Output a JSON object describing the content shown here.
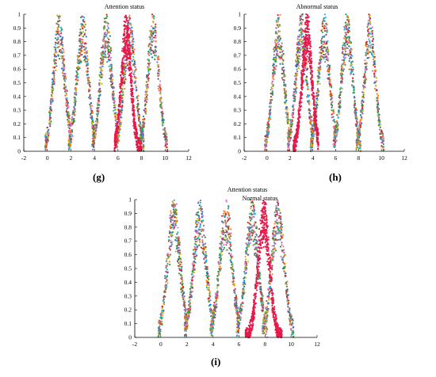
{
  "figure": {
    "panels": [
      {
        "label": "(g)"
      },
      {
        "label": "(h)"
      },
      {
        "label": "(i)"
      }
    ]
  },
  "chart_data": [
    {
      "type": "scatter",
      "panel": "(g)",
      "title": "",
      "annotations": [
        "Attention status"
      ],
      "xlabel": "",
      "ylabel": "",
      "xlim": [
        -2,
        12
      ],
      "ylim": [
        0,
        1
      ],
      "xticks": [
        "-2",
        "0",
        "2",
        "4",
        "6",
        "8",
        "10",
        "12"
      ],
      "yticks": [
        "0",
        "0.1",
        "0.2",
        "0.3",
        "0.4",
        "0.5",
        "0.6",
        "0.7",
        "0.8",
        "0.9",
        "1"
      ],
      "grid": false,
      "series": [
        {
          "color": "#e6194b",
          "mixed": false,
          "center": 6.7,
          "peak": 1.0,
          "spread": 0.42,
          "x_range": [
            5.7,
            8.0
          ]
        },
        {
          "color": "mixed",
          "mixed": true,
          "center": 1.0,
          "peak": 1.0,
          "spread": 0.5,
          "x_range": [
            -0.2,
            2.0
          ]
        },
        {
          "color": "mixed",
          "mixed": true,
          "center": 3.0,
          "peak": 1.0,
          "spread": 0.5,
          "x_range": [
            1.8,
            4.0
          ]
        },
        {
          "color": "mixed",
          "mixed": true,
          "center": 5.0,
          "peak": 1.0,
          "spread": 0.5,
          "x_range": [
            3.8,
            6.0
          ]
        },
        {
          "color": "mixed",
          "mixed": true,
          "center": 7.0,
          "peak": 1.0,
          "spread": 0.5,
          "x_range": [
            5.8,
            8.2
          ]
        },
        {
          "color": "mixed",
          "mixed": true,
          "center": 9.0,
          "peak": 1.0,
          "spread": 0.5,
          "x_range": [
            7.8,
            10.2
          ]
        }
      ]
    },
    {
      "type": "scatter",
      "panel": "(h)",
      "title": "",
      "annotations": [
        "Abnormal status"
      ],
      "xlabel": "",
      "ylabel": "",
      "xlim": [
        -2,
        12
      ],
      "ylim": [
        0,
        1
      ],
      "xticks": [
        "-2",
        "0",
        "2",
        "4",
        "6",
        "8",
        "10",
        "12"
      ],
      "yticks": [
        "0",
        "0.1",
        "0.2",
        "0.3",
        "0.4",
        "0.5",
        "0.6",
        "0.7",
        "0.8",
        "0.9",
        "1"
      ],
      "grid": false,
      "series": [
        {
          "color": "#e6194b",
          "mixed": false,
          "center": 3.5,
          "peak": 1.0,
          "spread": 0.45,
          "x_range": [
            2.3,
            4.5
          ]
        },
        {
          "color": "mixed",
          "mixed": true,
          "center": 1.0,
          "peak": 1.0,
          "spread": 0.5,
          "x_range": [
            -0.2,
            2.0
          ]
        },
        {
          "color": "mixed",
          "mixed": true,
          "center": 3.0,
          "peak": 1.0,
          "spread": 0.5,
          "x_range": [
            1.8,
            4.0
          ]
        },
        {
          "color": "mixed",
          "mixed": true,
          "center": 5.0,
          "peak": 1.0,
          "spread": 0.5,
          "x_range": [
            3.8,
            6.0
          ]
        },
        {
          "color": "mixed",
          "mixed": true,
          "center": 7.0,
          "peak": 1.0,
          "spread": 0.5,
          "x_range": [
            5.8,
            8.2
          ]
        },
        {
          "color": "mixed",
          "mixed": true,
          "center": 9.0,
          "peak": 1.0,
          "spread": 0.5,
          "x_range": [
            7.8,
            10.2
          ]
        }
      ]
    },
    {
      "type": "scatter",
      "panel": "(i)",
      "title": "",
      "annotations": [
        "Attention status",
        "Normal status"
      ],
      "xlabel": "",
      "ylabel": "",
      "xlim": [
        -2,
        12
      ],
      "ylim": [
        0,
        1
      ],
      "xticks": [
        "-2",
        "0",
        "2",
        "4",
        "6",
        "8",
        "10",
        "12"
      ],
      "yticks": [
        "0",
        "0.1",
        "0.2",
        "0.3",
        "0.4",
        "0.5",
        "0.6",
        "0.7",
        "0.8",
        "0.9",
        "1"
      ],
      "grid": false,
      "series": [
        {
          "color": "#e6194b",
          "mixed": false,
          "center": 7.9,
          "peak": 1.0,
          "spread": 0.45,
          "x_range": [
            6.5,
            9.3
          ]
        },
        {
          "color": "mixed",
          "mixed": true,
          "center": 1.0,
          "peak": 1.0,
          "spread": 0.5,
          "x_range": [
            -0.2,
            2.0
          ]
        },
        {
          "color": "mixed",
          "mixed": true,
          "center": 3.0,
          "peak": 1.0,
          "spread": 0.5,
          "x_range": [
            1.8,
            4.0
          ]
        },
        {
          "color": "mixed",
          "mixed": true,
          "center": 5.0,
          "peak": 1.0,
          "spread": 0.5,
          "x_range": [
            3.8,
            6.0
          ]
        },
        {
          "color": "mixed",
          "mixed": true,
          "center": 7.0,
          "peak": 1.0,
          "spread": 0.5,
          "x_range": [
            5.8,
            8.2
          ]
        },
        {
          "color": "mixed",
          "mixed": true,
          "center": 9.0,
          "peak": 1.0,
          "spread": 0.5,
          "x_range": [
            7.8,
            10.2
          ]
        }
      ]
    }
  ],
  "palette": [
    "#1f77b4",
    "#ff7f0e",
    "#2ca02c",
    "#d62728",
    "#9467bd",
    "#8c564b",
    "#e377c2",
    "#17becf",
    "#bcbd22",
    "#7f7f7f"
  ]
}
